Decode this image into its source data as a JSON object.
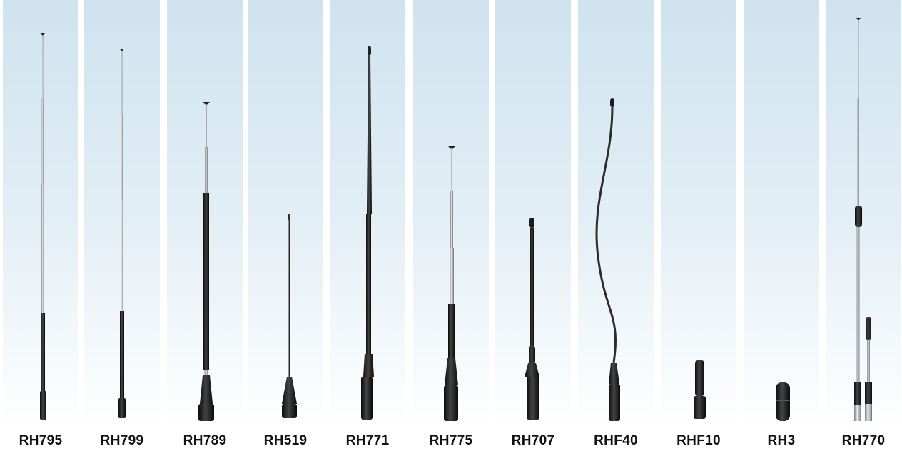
{
  "products": [
    {
      "model": "RH795"
    },
    {
      "model": "RH799"
    },
    {
      "model": "RH789"
    },
    {
      "model": "RH519"
    },
    {
      "model": "RH771"
    },
    {
      "model": "RH775"
    },
    {
      "model": "RH707"
    },
    {
      "model": "RHF40"
    },
    {
      "model": "RHF10"
    },
    {
      "model": "RH3"
    },
    {
      "model": "RH770"
    }
  ]
}
